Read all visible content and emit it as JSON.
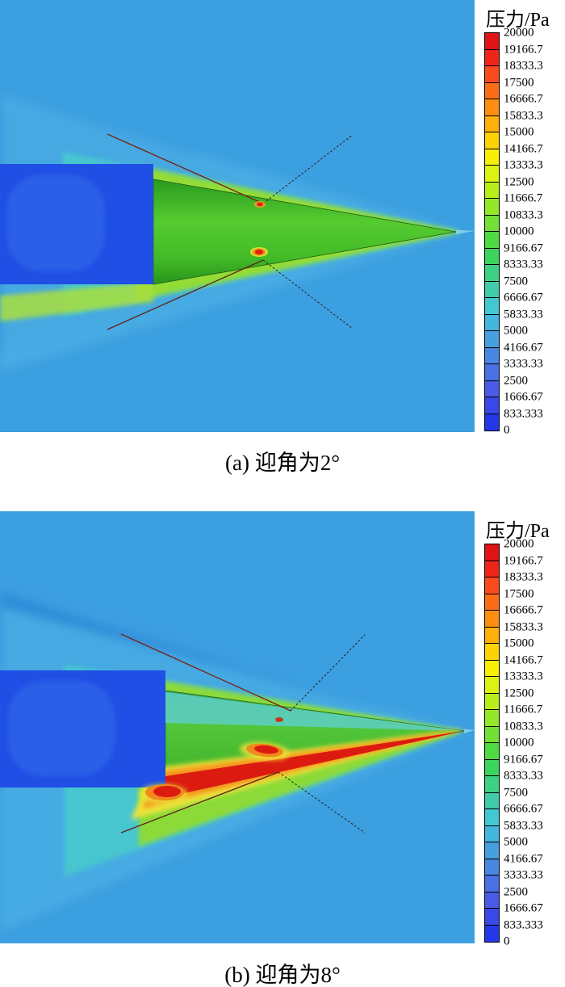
{
  "legend": {
    "title": "压力/Pa",
    "tick_labels": [
      "20000",
      "19166.7",
      "18333.3",
      "17500",
      "16666.7",
      "15833.3",
      "15000",
      "14166.7",
      "13333.3",
      "12500",
      "11666.7",
      "10833.3",
      "10000",
      "9166.67",
      "8333.33",
      "7500",
      "6666.67",
      "5833.33",
      "5000",
      "4166.67",
      "3333.33",
      "2500",
      "1666.67",
      "833.333",
      "0"
    ],
    "band_colors_top_to_bottom": [
      "#de1417",
      "#f02519",
      "#fb4b1e",
      "#fd6d17",
      "#fe8e11",
      "#feb00a",
      "#fdd305",
      "#f8ef06",
      "#dcf311",
      "#b9ee1d",
      "#95e729",
      "#72e036",
      "#4fd943",
      "#3cd45c",
      "#3ed083",
      "#40ccaa",
      "#43c8d0",
      "#45b6de",
      "#479fe0",
      "#4888e2",
      "#4a71e4",
      "#4b5be6",
      "#3948e8",
      "#2438ea"
    ]
  },
  "panels": [
    {
      "id": "a",
      "caption": "(a) 迎角为2°",
      "angle_of_attack": "2°"
    },
    {
      "id": "b",
      "caption": "(b) 迎角为8°",
      "angle_of_attack": "8°"
    }
  ],
  "chart_data": [
    {
      "type": "heatmap",
      "subtype": "cfd-pressure-contour",
      "title": "压力/Pa",
      "caption": "(a) 迎角为2°",
      "angle_of_attack_deg": 2,
      "colorbar": {
        "label": "压力/Pa",
        "min": 0,
        "max": 20000,
        "orientation": "vertical-right",
        "levels": [
          0,
          833.333,
          1666.67,
          2500,
          3333.33,
          4166.67,
          5000,
          5833.33,
          6666.67,
          7500,
          8333.33,
          9166.67,
          10000,
          10833.3,
          11666.7,
          12500,
          13333.3,
          14166.7,
          15000,
          15833.3,
          16666.7,
          17500,
          18333.3,
          19166.7,
          20000
        ]
      },
      "features": [
        "freestream background ~3300-4200 Pa (light blue)",
        "rectangular base-wake region behind cone ~800-1700 Pa (dark royal blue)",
        "conical shock layer around body ~5000-7500 Pa (cyan)",
        "cone surface nearly symmetric ~10000-12000 Pa (green)",
        "small hot spots at fin roots up to ~20000 Pa (red)",
        "fin traces shown as diagonal solid and dotted lines"
      ]
    },
    {
      "type": "heatmap",
      "subtype": "cfd-pressure-contour",
      "title": "压力/Pa",
      "caption": "(b) 迎角为8°",
      "angle_of_attack_deg": 8,
      "colorbar": {
        "label": "压力/Pa",
        "min": 0,
        "max": 20000,
        "orientation": "vertical-right",
        "levels": [
          0,
          833.333,
          1666.67,
          2500,
          3333.33,
          4166.67,
          5000,
          5833.33,
          6666.67,
          7500,
          8333.33,
          9166.67,
          10000,
          10833.3,
          11666.7,
          12500,
          13333.3,
          14166.7,
          15000,
          15833.3,
          16666.7,
          17500,
          18333.3,
          19166.7,
          20000
        ]
      },
      "features": [
        "freestream background ~3300-4200 Pa (light blue)",
        "rectangular base-wake region ~800-1700 Pa (dark royal blue)",
        "leeward (upper) cone surface low pressure ~5800-8300 Pa (teal/green)",
        "windward (lower) cone surface high pressure band 16000-20000 Pa (red/orange) running to the apex",
        "strong red high-pressure blob near mid-body fin and at base lower corner",
        "fin traces shown as diagonal solid and dotted lines"
      ]
    }
  ]
}
